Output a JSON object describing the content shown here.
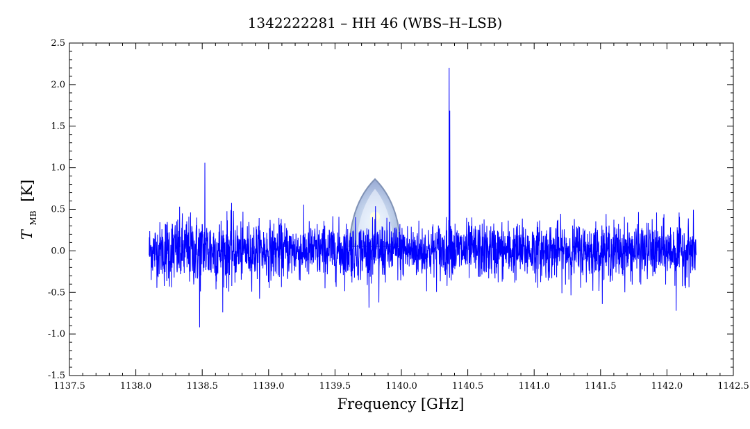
{
  "chart_data": {
    "type": "line",
    "title": "1342222281 – HH 46 (WBS–H–LSB)",
    "xlabel": "Frequency [GHz]",
    "ylabel_main": "T",
    "ylabel_sub": "MB",
    "ylabel_unit": "[K]",
    "xlim": [
      1137.5,
      1142.5
    ],
    "ylim": [
      -1.5,
      2.5
    ],
    "x_ticks": [
      "1137.5",
      "1138.0",
      "1138.5",
      "1139.0",
      "1139.5",
      "1140.0",
      "1140.5",
      "1141.0",
      "1141.5",
      "1142.0",
      "1142.5"
    ],
    "y_ticks": [
      "2.5",
      "2.0",
      "1.5",
      "1.0",
      "0.5",
      "0.0",
      "-0.5",
      "-1.0",
      "-1.5"
    ],
    "grid": false,
    "series": [
      {
        "color": "#0000ff",
        "x_range": [
          1138.1,
          1142.22
        ],
        "noise_rms": 0.17,
        "features": [
          {
            "x": 1140.36,
            "y": 2.2
          },
          {
            "x": 1140.365,
            "y": 1.5
          },
          {
            "x": 1138.52,
            "y": 1.06
          },
          {
            "x": 1138.48,
            "y": -0.92
          },
          {
            "x": 1142.07,
            "y": -0.72
          },
          {
            "x": 1139.83,
            "y": -0.62
          }
        ]
      }
    ],
    "watermark": "herschel-logo"
  }
}
